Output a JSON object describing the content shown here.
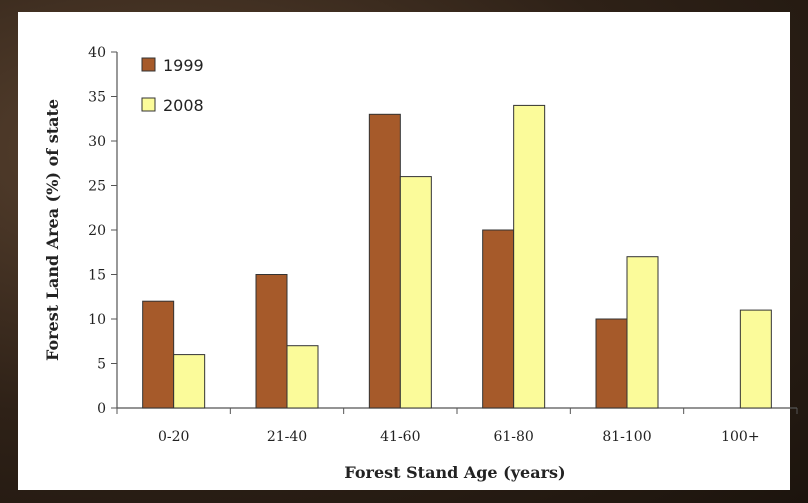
{
  "chart_data": {
    "type": "bar",
    "categories": [
      "0-20",
      "21-40",
      "41-60",
      "61-80",
      "81-100",
      "100+"
    ],
    "series": [
      {
        "name": "1999",
        "values": [
          12,
          15,
          33,
          20,
          10,
          0
        ],
        "color": "#a65a2a"
      },
      {
        "name": "2008",
        "values": [
          6,
          7,
          26,
          34,
          17,
          11
        ],
        "color": "#fbfb9a"
      }
    ],
    "xlabel": "Forest Stand Age (years)",
    "ylabel": "Forest Land Area (%) of state",
    "ylim": [
      0,
      40
    ],
    "yticks": [
      0,
      5,
      10,
      15,
      20,
      25,
      30,
      35,
      40
    ],
    "grid": false,
    "legend_position": "top-left"
  }
}
